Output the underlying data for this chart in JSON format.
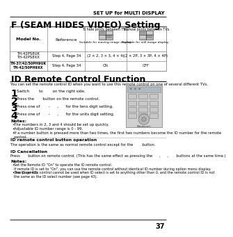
{
  "page_num": "37",
  "header_text": "SET UP for MULTI DISPLAY",
  "section1_title": "F (SEAM HIDES VIDEO) Setting",
  "section2_title": "ID Remote Control Function",
  "intro_text": "You can set the remote control ID when you want to use this remote control on one of several different TVs.",
  "step1": "Switch        to        on the right side.",
  "step2": "Press the       button on the remote control.",
  "step3": "Press one of       -      ,      for the tens digit setting.",
  "step4": "Press one of       -      ,      for the units digit setting.",
  "notes_title": "Notes:",
  "note1": "The numbers in 2, 3 and 4 should be set up quickly.",
  "note2": "Adjustable ID number range is 0 - 99.",
  "note3": "If a number button is pressed more than two times, the first two numbers become the ID number for the remote\ncontrol.",
  "sub1_title": "ID remote control button operation",
  "sub1_text": "The operation is the same as normal remote control except for the        button.",
  "sub2_title": "ID Cancellation",
  "sub2_text": "Press       button on remote control. (This has the same effect as pressing the      ,      ,       buttons at the same time.)",
  "notes2_title": "Notes:",
  "note2_1": "Set the Remote ID “On” to operate the ID remote control.\nIf remote ID is set to “On”, you can use the remote control without identical ID number during option menu display.\n(see page 43).",
  "note2_2": "The ID remote control cannot be used when ID select is set to anything other than 0, and the remote control ID is not\nthe same as the ID select number (see page 43).",
  "row1_model": "TH-42PS8UK\nTH-42PS8XX",
  "row1_ref": "Step 4, Page 34",
  "row1_c3": "(2 × 2, 3 × 3, 4 × 4)",
  "row1_c4": "(2 × 2P, 3 × 3P, 4 × 4P)",
  "row2_model": "TH-37/42/50PH9UK\nTH-42/50PH9XX",
  "row2_ref": "Step 4, Page 34",
  "row2_c3": "ON",
  "row2_c4": "OFF",
  "col3_header": "To hide joints between TVs.",
  "col4_header": "To show joints between TVs.",
  "col3_footer": "Suitable for moving image display.",
  "col4_footer": "Suitable for still image display.",
  "model_label": "Model No.",
  "ref_label": "Reference",
  "bg_color": "#ffffff"
}
